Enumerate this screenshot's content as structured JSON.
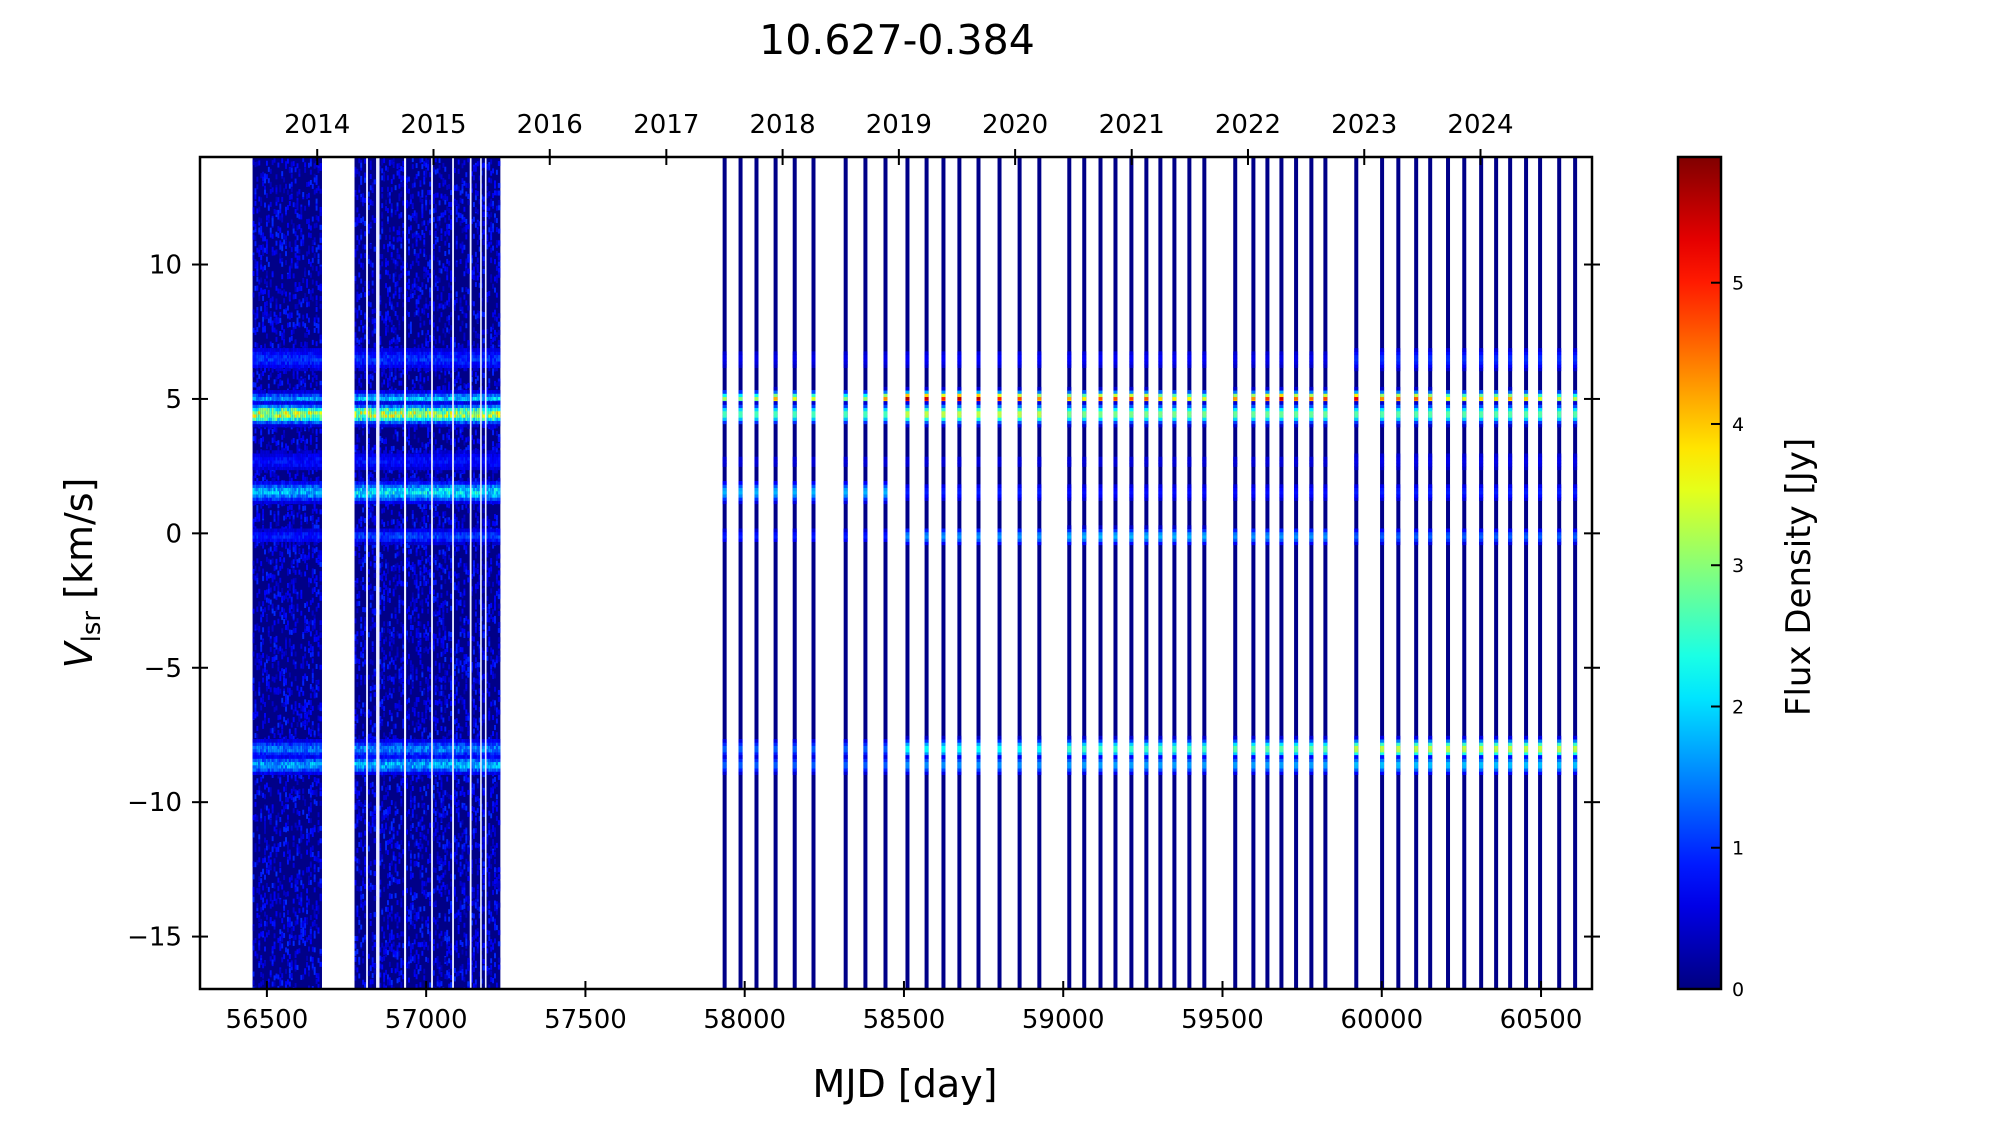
{
  "chart_data": {
    "type": "heatmap",
    "title": "10.627-0.384",
    "xlabel": "MJD [day]",
    "ylabel_main": "V",
    "ylabel_sub": "lsr",
    "ylabel_unit": " [km/s]",
    "colorbar_label": "Flux Density [Jy]",
    "xlim": [
      56290,
      60660
    ],
    "ylim": [
      -16.95,
      14.0
    ],
    "clim": [
      0,
      5.89
    ],
    "xticks": [
      56500,
      57000,
      57500,
      58000,
      58500,
      59000,
      59500,
      60000,
      60500
    ],
    "xtick_labels": [
      "56500",
      "57000",
      "57500",
      "58000",
      "58500",
      "59000",
      "59500",
      "60000",
      "60500"
    ],
    "yticks": [
      10,
      5,
      0,
      -5,
      -10,
      -15
    ],
    "ytick_labels": [
      "10",
      "5",
      "0",
      "−5",
      "−10",
      "−15"
    ],
    "year_ticks": [
      56658,
      57023,
      57388,
      57754,
      58119,
      58484,
      58849,
      59215,
      59580,
      59945,
      60310
    ],
    "year_labels": [
      "2014",
      "2015",
      "2016",
      "2017",
      "2018",
      "2019",
      "2020",
      "2021",
      "2022",
      "2023",
      "2024"
    ],
    "cbar_ticks": [
      0,
      1,
      2,
      3,
      4,
      5
    ],
    "cbar_tick_labels": [
      "0",
      "1",
      "2",
      "3",
      "4",
      "5"
    ],
    "features_kms": [
      5.0,
      4.45,
      6.5,
      1.55,
      -0.1,
      -8.0,
      -8.6,
      2.7
    ],
    "dense_blocks": [
      {
        "start": 56456,
        "end": 56670,
        "gaps": [],
        "amps": [
          1.6,
          3.4,
          1.0,
          1.8,
          0.9,
          1.4,
          1.7,
          0.8
        ]
      },
      {
        "start": 56776,
        "end": 57234,
        "gaps": [
          56814,
          56846,
          56851,
          56933,
          57018,
          57084,
          57140,
          57172,
          57187
        ],
        "amps": [
          1.9,
          3.3,
          1.0,
          2.1,
          1.1,
          1.5,
          1.8,
          0.8
        ]
      }
    ],
    "epochs": [
      {
        "mjd": 57937,
        "peak": 3.2
      },
      {
        "mjd": 57987,
        "peak": 3.0
      },
      {
        "mjd": 58037,
        "peak": 3.2
      },
      {
        "mjd": 58097,
        "peak": 4.2
      },
      {
        "mjd": 58157,
        "peak": 3.6
      },
      {
        "mjd": 58216,
        "peak": 3.5
      },
      {
        "mjd": 58317,
        "peak": 3.0
      },
      {
        "mjd": 58379,
        "peak": 3.1
      },
      {
        "mjd": 58442,
        "peak": 4.4
      },
      {
        "mjd": 58511,
        "peak": 5.7
      },
      {
        "mjd": 58571,
        "peak": 5.5
      },
      {
        "mjd": 58624,
        "peak": 5.0
      },
      {
        "mjd": 58674,
        "peak": 5.6
      },
      {
        "mjd": 58734,
        "peak": 5.6
      },
      {
        "mjd": 58800,
        "peak": 5.0
      },
      {
        "mjd": 58863,
        "peak": 4.8
      },
      {
        "mjd": 58925,
        "peak": 4.4
      },
      {
        "mjd": 59019,
        "peak": 4.2
      },
      {
        "mjd": 59066,
        "peak": 3.8
      },
      {
        "mjd": 59117,
        "peak": 4.7
      },
      {
        "mjd": 59164,
        "peak": 4.8
      },
      {
        "mjd": 59214,
        "peak": 4.8
      },
      {
        "mjd": 59261,
        "peak": 4.7
      },
      {
        "mjd": 59305,
        "peak": 4.0
      },
      {
        "mjd": 59349,
        "peak": 3.8
      },
      {
        "mjd": 59396,
        "peak": 3.7
      },
      {
        "mjd": 59443,
        "peak": 3.5
      },
      {
        "mjd": 59540,
        "peak": 4.3
      },
      {
        "mjd": 59597,
        "peak": 4.4
      },
      {
        "mjd": 59641,
        "peak": 4.9
      },
      {
        "mjd": 59685,
        "peak": 5.5
      },
      {
        "mjd": 59731,
        "peak": 4.6
      },
      {
        "mjd": 59779,
        "peak": 4.6
      },
      {
        "mjd": 59823,
        "peak": 4.8
      },
      {
        "mjd": 59920,
        "peak": 5.3
      },
      {
        "mjd": 60001,
        "peak": 4.4
      },
      {
        "mjd": 60052,
        "peak": 4.6
      },
      {
        "mjd": 60108,
        "peak": 4.7
      },
      {
        "mjd": 60152,
        "peak": 4.3
      },
      {
        "mjd": 60208,
        "peak": 3.7
      },
      {
        "mjd": 60259,
        "peak": 3.6
      },
      {
        "mjd": 60312,
        "peak": 4.0
      },
      {
        "mjd": 60359,
        "peak": 3.9
      },
      {
        "mjd": 60403,
        "peak": 4.2
      },
      {
        "mjd": 60453,
        "peak": 4.0
      },
      {
        "mjd": 60497,
        "peak": 3.5
      },
      {
        "mjd": 60557,
        "peak": 3.4
      },
      {
        "mjd": 60607,
        "peak": 3.3
      }
    ],
    "eras": [
      {
        "from": 57900,
        "to": 58480,
        "amps": [
          0,
          2.7,
          0.6,
          1.8,
          0.9,
          1.3,
          1.3,
          0.5
        ]
      },
      {
        "from": 58480,
        "to": 58950,
        "amps": [
          0,
          3.4,
          0.7,
          0.9,
          1.6,
          2.3,
          1.6,
          0.5
        ]
      },
      {
        "from": 58950,
        "to": 59480,
        "amps": [
          0,
          3.0,
          0.7,
          0.8,
          1.8,
          2.6,
          1.7,
          0.5
        ]
      },
      {
        "from": 59480,
        "to": 59880,
        "amps": [
          0,
          2.9,
          0.6,
          0.8,
          1.6,
          2.8,
          1.7,
          0.5
        ]
      },
      {
        "from": 59880,
        "to": 60700,
        "amps": [
          0,
          2.8,
          1.0,
          0.9,
          1.3,
          3.4,
          1.9,
          0.6
        ]
      }
    ]
  }
}
